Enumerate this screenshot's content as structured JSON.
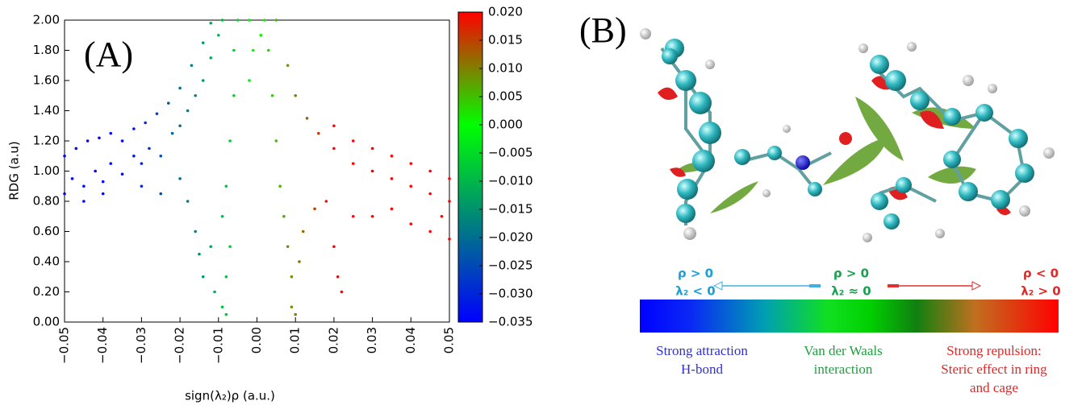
{
  "chart_data": {
    "type": "scatter",
    "panel_label": "(A)",
    "xlabel": "sign(λ₂)ρ (a.u.)",
    "ylabel": "RDG (a.u)",
    "xlim": [
      -0.05,
      0.05
    ],
    "xticks": [
      {
        "value": -0.05,
        "label": "−0.05"
      },
      {
        "value": -0.04,
        "label": "−0.04"
      },
      {
        "value": -0.03,
        "label": "−0.03"
      },
      {
        "value": -0.02,
        "label": "−0.02"
      },
      {
        "value": -0.01,
        "label": "−0.01"
      },
      {
        "value": 0,
        "label": "0.00"
      },
      {
        "value": 0.01,
        "label": "0.01"
      },
      {
        "value": 0.02,
        "label": "0.02"
      },
      {
        "value": 0.03,
        "label": "0.03"
      },
      {
        "value": 0.04,
        "label": "0.04"
      },
      {
        "value": 0.05,
        "label": "0.05"
      }
    ],
    "ylim": [
      0,
      2
    ],
    "yticks": [
      {
        "value": 0,
        "label": "0.00"
      },
      {
        "value": 0.2,
        "label": "0.20"
      },
      {
        "value": 0.4,
        "label": "0.40"
      },
      {
        "value": 0.6,
        "label": "0.60"
      },
      {
        "value": 0.8,
        "label": "0.80"
      },
      {
        "value": 1,
        "label": "1.00"
      },
      {
        "value": 1.2,
        "label": "1.20"
      },
      {
        "value": 1.4,
        "label": "1.40"
      },
      {
        "value": 1.6,
        "label": "1.60"
      },
      {
        "value": 1.8,
        "label": "1.80"
      },
      {
        "value": 2,
        "label": "2.00"
      }
    ],
    "colorbar": {
      "clim": [
        -0.035,
        0.02
      ],
      "ticks": [
        {
          "value": 0.02,
          "label": "0.020"
        },
        {
          "value": 0.015,
          "label": "0.015"
        },
        {
          "value": 0.01,
          "label": "0.010"
        },
        {
          "value": 0.005,
          "label": "0.005"
        },
        {
          "value": 0,
          "label": "0.000"
        },
        {
          "value": -0.005,
          "label": "−0.005"
        },
        {
          "value": -0.01,
          "label": "−0.010"
        },
        {
          "value": -0.015,
          "label": "−0.015"
        },
        {
          "value": -0.02,
          "label": "−0.020"
        },
        {
          "value": -0.025,
          "label": "−0.025"
        },
        {
          "value": -0.03,
          "label": "−0.030"
        },
        {
          "value": -0.035,
          "label": "−0.035"
        }
      ],
      "colormap": [
        {
          "value": -0.035,
          "color": "#0000ff"
        },
        {
          "value": 0,
          "color": "#00ff00"
        },
        {
          "value": 0.02,
          "color": "#ff0000"
        }
      ]
    },
    "x": [
      -0.05,
      -0.048,
      -0.045,
      -0.042,
      -0.04,
      -0.038,
      -0.035,
      -0.032,
      -0.03,
      -0.028,
      -0.025,
      -0.022,
      -0.02,
      -0.018,
      -0.016,
      -0.014,
      -0.012,
      -0.01,
      -0.009,
      -0.05,
      -0.047,
      -0.044,
      -0.041,
      -0.038,
      -0.035,
      -0.032,
      -0.029,
      -0.026,
      -0.023,
      -0.02,
      -0.017,
      -0.014,
      -0.012,
      -0.045,
      -0.04,
      -0.03,
      -0.025,
      -0.02,
      -0.018,
      -0.016,
      -0.015,
      -0.014,
      -0.012,
      -0.011,
      -0.009,
      -0.008,
      -0.007,
      -0.009,
      -0.008,
      -0.007,
      -0.006,
      -0.006,
      -0.005,
      -0.008,
      -0.002,
      -0.001,
      -0.002,
      0.001,
      0.002,
      0.003,
      0.004,
      0.005,
      0.006,
      0.007,
      0.008,
      0.009,
      0.009,
      0.01,
      0.011,
      0.012,
      0.005,
      0.008,
      0.01,
      0.013,
      0.016,
      0.02,
      0.025,
      0.03,
      0.035,
      0.04,
      0.045,
      0.05,
      0.02,
      0.025,
      0.03,
      0.035,
      0.04,
      0.045,
      0.05,
      0.015,
      0.018,
      0.02,
      0.021,
      0.022,
      0.025,
      0.03,
      0.035,
      0.04,
      0.045,
      0.05,
      0.048
    ],
    "y": [
      0.85,
      0.95,
      0.9,
      1.0,
      0.93,
      1.05,
      0.98,
      1.1,
      1.05,
      1.15,
      1.1,
      1.25,
      1.3,
      1.4,
      1.5,
      1.6,
      1.75,
      1.9,
      2.0,
      1.1,
      1.15,
      1.2,
      1.22,
      1.25,
      1.2,
      1.28,
      1.32,
      1.38,
      1.45,
      1.55,
      1.7,
      1.85,
      1.98,
      0.8,
      0.85,
      0.9,
      0.85,
      0.95,
      0.8,
      0.6,
      0.45,
      0.3,
      0.5,
      0.2,
      0.1,
      0.3,
      0.5,
      0.7,
      0.9,
      1.2,
      1.5,
      1.8,
      2.0,
      0.05,
      1.6,
      1.8,
      2.0,
      1.9,
      2.0,
      1.8,
      1.5,
      1.2,
      0.9,
      0.7,
      0.5,
      0.3,
      0.1,
      0.05,
      0.4,
      0.6,
      2.0,
      1.7,
      1.5,
      1.35,
      1.25,
      1.15,
      1.05,
      1.0,
      0.95,
      0.9,
      0.85,
      0.8,
      1.3,
      1.2,
      1.15,
      1.1,
      1.05,
      1.0,
      0.95,
      0.75,
      0.8,
      0.5,
      0.3,
      0.2,
      0.7,
      0.7,
      0.75,
      0.65,
      0.6,
      0.55,
      0.7
    ]
  },
  "panel_b": {
    "panel_label": "(B)",
    "legend": [
      {
        "lines": [
          "ρ > 0",
          "λ₂ < 0"
        ]
      },
      {
        "lines": [
          "ρ > 0",
          "λ₂ ≈ 0"
        ]
      },
      {
        "lines": [
          "ρ < 0",
          "λ₂ > 0"
        ]
      }
    ],
    "captions": [
      {
        "lines": [
          "Strong attraction",
          "H-bond"
        ]
      },
      {
        "lines": [
          "Van der Waals",
          "interaction"
        ]
      },
      {
        "lines": [
          "Strong repulsion:",
          "Steric effect in ring",
          "and cage"
        ]
      }
    ]
  }
}
